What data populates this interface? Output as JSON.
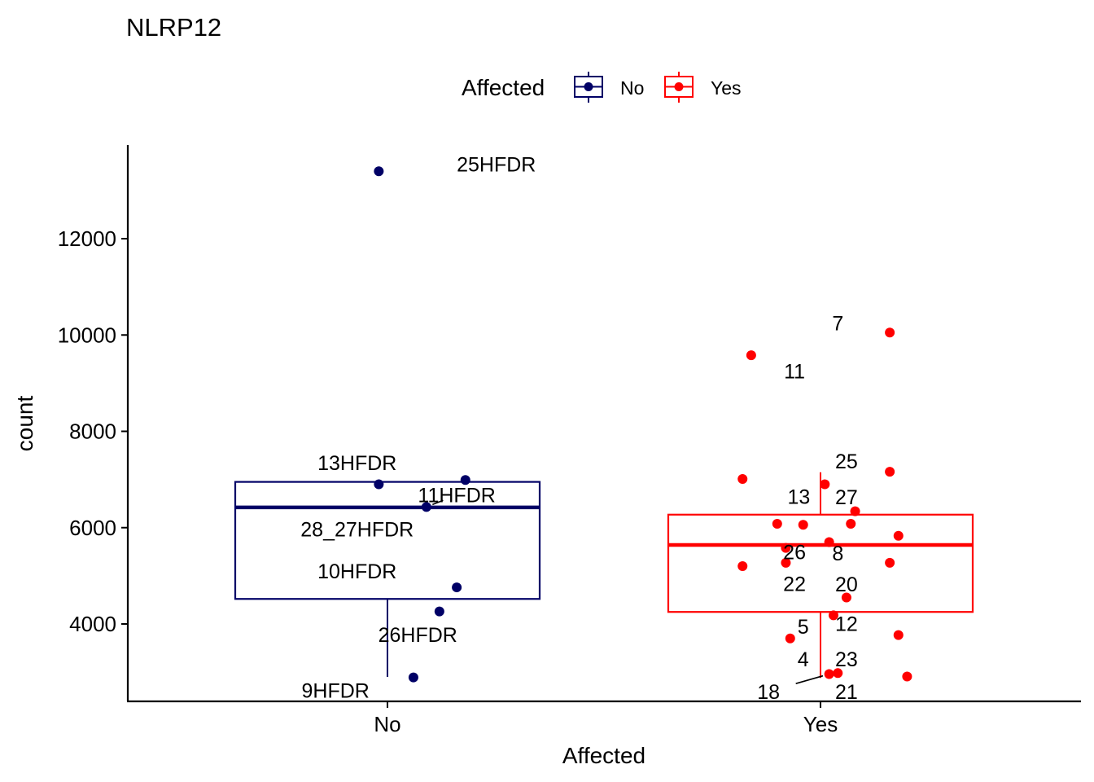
{
  "chart_data": {
    "type": "box",
    "title": "NLRP12",
    "xlabel": "Affected",
    "ylabel": "count",
    "legend": {
      "title": "Affected",
      "position": "top",
      "entries": [
        "No",
        "Yes"
      ]
    },
    "categories": [
      "No",
      "Yes"
    ],
    "ylim": [
      2300,
      13900
    ],
    "yticks": [
      4000,
      6000,
      8000,
      10000,
      12000
    ],
    "ytick_labels": [
      "4000",
      "6000",
      "8000",
      "10000",
      "12000"
    ],
    "grid": false,
    "colors": {
      "No": "#000066",
      "Yes": "#FF0000"
    },
    "boxes": [
      {
        "category": "No",
        "min": 2900,
        "q1": 4520,
        "median": 6420,
        "q3": 6950,
        "max": 6950
      },
      {
        "category": "Yes",
        "min": 2880,
        "q1": 4250,
        "median": 5640,
        "q3": 6270,
        "max": 7150
      }
    ],
    "points": [
      {
        "group": "No",
        "x_jitter": -0.02,
        "y": 13400,
        "label": "25HFDR",
        "lx": 0.16,
        "ly": 13550,
        "anchor": "start"
      },
      {
        "group": "No",
        "x_jitter": 0.18,
        "y": 6990,
        "label": "",
        "lx": null,
        "ly": null,
        "anchor": "middle"
      },
      {
        "group": "No",
        "x_jitter": -0.02,
        "y": 6900,
        "label": "13HFDR",
        "lx": -0.07,
        "ly": 7350,
        "anchor": "middle"
      },
      {
        "group": "No",
        "x_jitter": 0.09,
        "y": 6430,
        "label": "11HFDR",
        "lx": 0.16,
        "ly": 6680,
        "anchor": "middle",
        "leader": true
      },
      {
        "group": "No",
        "x_jitter": 0.16,
        "y": 4760,
        "label": "10HFDR",
        "lx": -0.07,
        "ly": 5100,
        "anchor": "middle"
      },
      {
        "group": "No",
        "x_jitter": 0.12,
        "y": 4260,
        "label": "26HFDR",
        "lx": 0.07,
        "ly": 3780,
        "anchor": "middle"
      },
      {
        "group": "No",
        "x_jitter": 0.06,
        "y": 2890,
        "label": "9HFDR",
        "lx": -0.12,
        "ly": 2620,
        "anchor": "middle"
      },
      {
        "group": "No",
        "x_jitter": 0.0,
        "y": 6200,
        "label": "28_27HFDR",
        "lx": -0.07,
        "ly": 5970,
        "anchor": "middle",
        "hidden_point": true
      },
      {
        "group": "Yes",
        "x_jitter": 0.16,
        "y": 10050,
        "label": "7",
        "lx": 0.04,
        "ly": 10250,
        "anchor": "middle"
      },
      {
        "group": "Yes",
        "x_jitter": -0.16,
        "y": 9580,
        "label": "11",
        "lx": -0.06,
        "ly": 9250,
        "anchor": "middle"
      },
      {
        "group": "Yes",
        "x_jitter": 0.16,
        "y": 7160,
        "label": "25",
        "lx": 0.06,
        "ly": 7380,
        "anchor": "middle"
      },
      {
        "group": "Yes",
        "x_jitter": -0.18,
        "y": 7010,
        "label": "",
        "lx": null,
        "ly": null,
        "anchor": "middle"
      },
      {
        "group": "Yes",
        "x_jitter": 0.01,
        "y": 6900,
        "label": "13",
        "lx": -0.05,
        "ly": 6650,
        "anchor": "middle"
      },
      {
        "group": "Yes",
        "x_jitter": 0.08,
        "y": 6340,
        "label": "27",
        "lx": 0.06,
        "ly": 6640,
        "anchor": "middle"
      },
      {
        "group": "Yes",
        "x_jitter": -0.1,
        "y": 6080,
        "label": "",
        "lx": null,
        "ly": null,
        "anchor": "middle"
      },
      {
        "group": "Yes",
        "x_jitter": -0.04,
        "y": 6060,
        "label": "",
        "lx": null,
        "ly": null,
        "anchor": "middle"
      },
      {
        "group": "Yes",
        "x_jitter": 0.07,
        "y": 6080,
        "label": "",
        "lx": null,
        "ly": null,
        "anchor": "middle"
      },
      {
        "group": "Yes",
        "x_jitter": 0.18,
        "y": 5830,
        "label": "",
        "lx": null,
        "ly": null,
        "anchor": "middle"
      },
      {
        "group": "Yes",
        "x_jitter": 0.02,
        "y": 5700,
        "label": "8",
        "lx": 0.04,
        "ly": 5470,
        "anchor": "middle"
      },
      {
        "group": "Yes",
        "x_jitter": -0.08,
        "y": 5580,
        "label": "26",
        "lx": -0.06,
        "ly": 5500,
        "anchor": "middle"
      },
      {
        "group": "Yes",
        "x_jitter": -0.08,
        "y": 5270,
        "label": "",
        "lx": null,
        "ly": null,
        "anchor": "middle"
      },
      {
        "group": "Yes",
        "x_jitter": 0.16,
        "y": 5270,
        "label": "",
        "lx": null,
        "ly": null,
        "anchor": "middle"
      },
      {
        "group": "Yes",
        "x_jitter": -0.18,
        "y": 5200,
        "label": "",
        "lx": null,
        "ly": null,
        "anchor": "middle"
      },
      {
        "group": "Yes",
        "x_jitter": 0.06,
        "y": 4550,
        "label": "20",
        "lx": 0.06,
        "ly": 4830,
        "anchor": "middle"
      },
      {
        "group": "Yes",
        "x_jitter": -0.05,
        "y": 4800,
        "label": "22",
        "lx": -0.06,
        "ly": 4840,
        "anchor": "middle",
        "hidden_point": true
      },
      {
        "group": "Yes",
        "x_jitter": 0.03,
        "y": 4180,
        "label": "12",
        "lx": 0.06,
        "ly": 4010,
        "anchor": "middle"
      },
      {
        "group": "Yes",
        "x_jitter": 0.18,
        "y": 3770,
        "label": "",
        "lx": null,
        "ly": null,
        "anchor": "middle"
      },
      {
        "group": "Yes",
        "x_jitter": -0.07,
        "y": 3700,
        "label": "5",
        "lx": -0.04,
        "ly": 3950,
        "anchor": "middle"
      },
      {
        "group": "Yes",
        "x_jitter": 0.04,
        "y": 2980,
        "label": "23",
        "lx": 0.06,
        "ly": 3270,
        "anchor": "middle"
      },
      {
        "group": "Yes",
        "x_jitter": -0.04,
        "y": 3200,
        "label": "4",
        "lx": -0.04,
        "ly": 3270,
        "anchor": "middle",
        "hidden_point": true
      },
      {
        "group": "Yes",
        "x_jitter": 0.02,
        "y": 2960,
        "label": "18",
        "lx": -0.12,
        "ly": 2600,
        "anchor": "middle",
        "leader": true
      },
      {
        "group": "Yes",
        "x_jitter": 0.2,
        "y": 2910,
        "label": "",
        "lx": null,
        "ly": null,
        "anchor": "middle"
      },
      {
        "group": "Yes",
        "x_jitter": 0.04,
        "y": 2750,
        "label": "21",
        "lx": 0.06,
        "ly": 2600,
        "anchor": "middle",
        "hidden_point": true
      }
    ]
  }
}
